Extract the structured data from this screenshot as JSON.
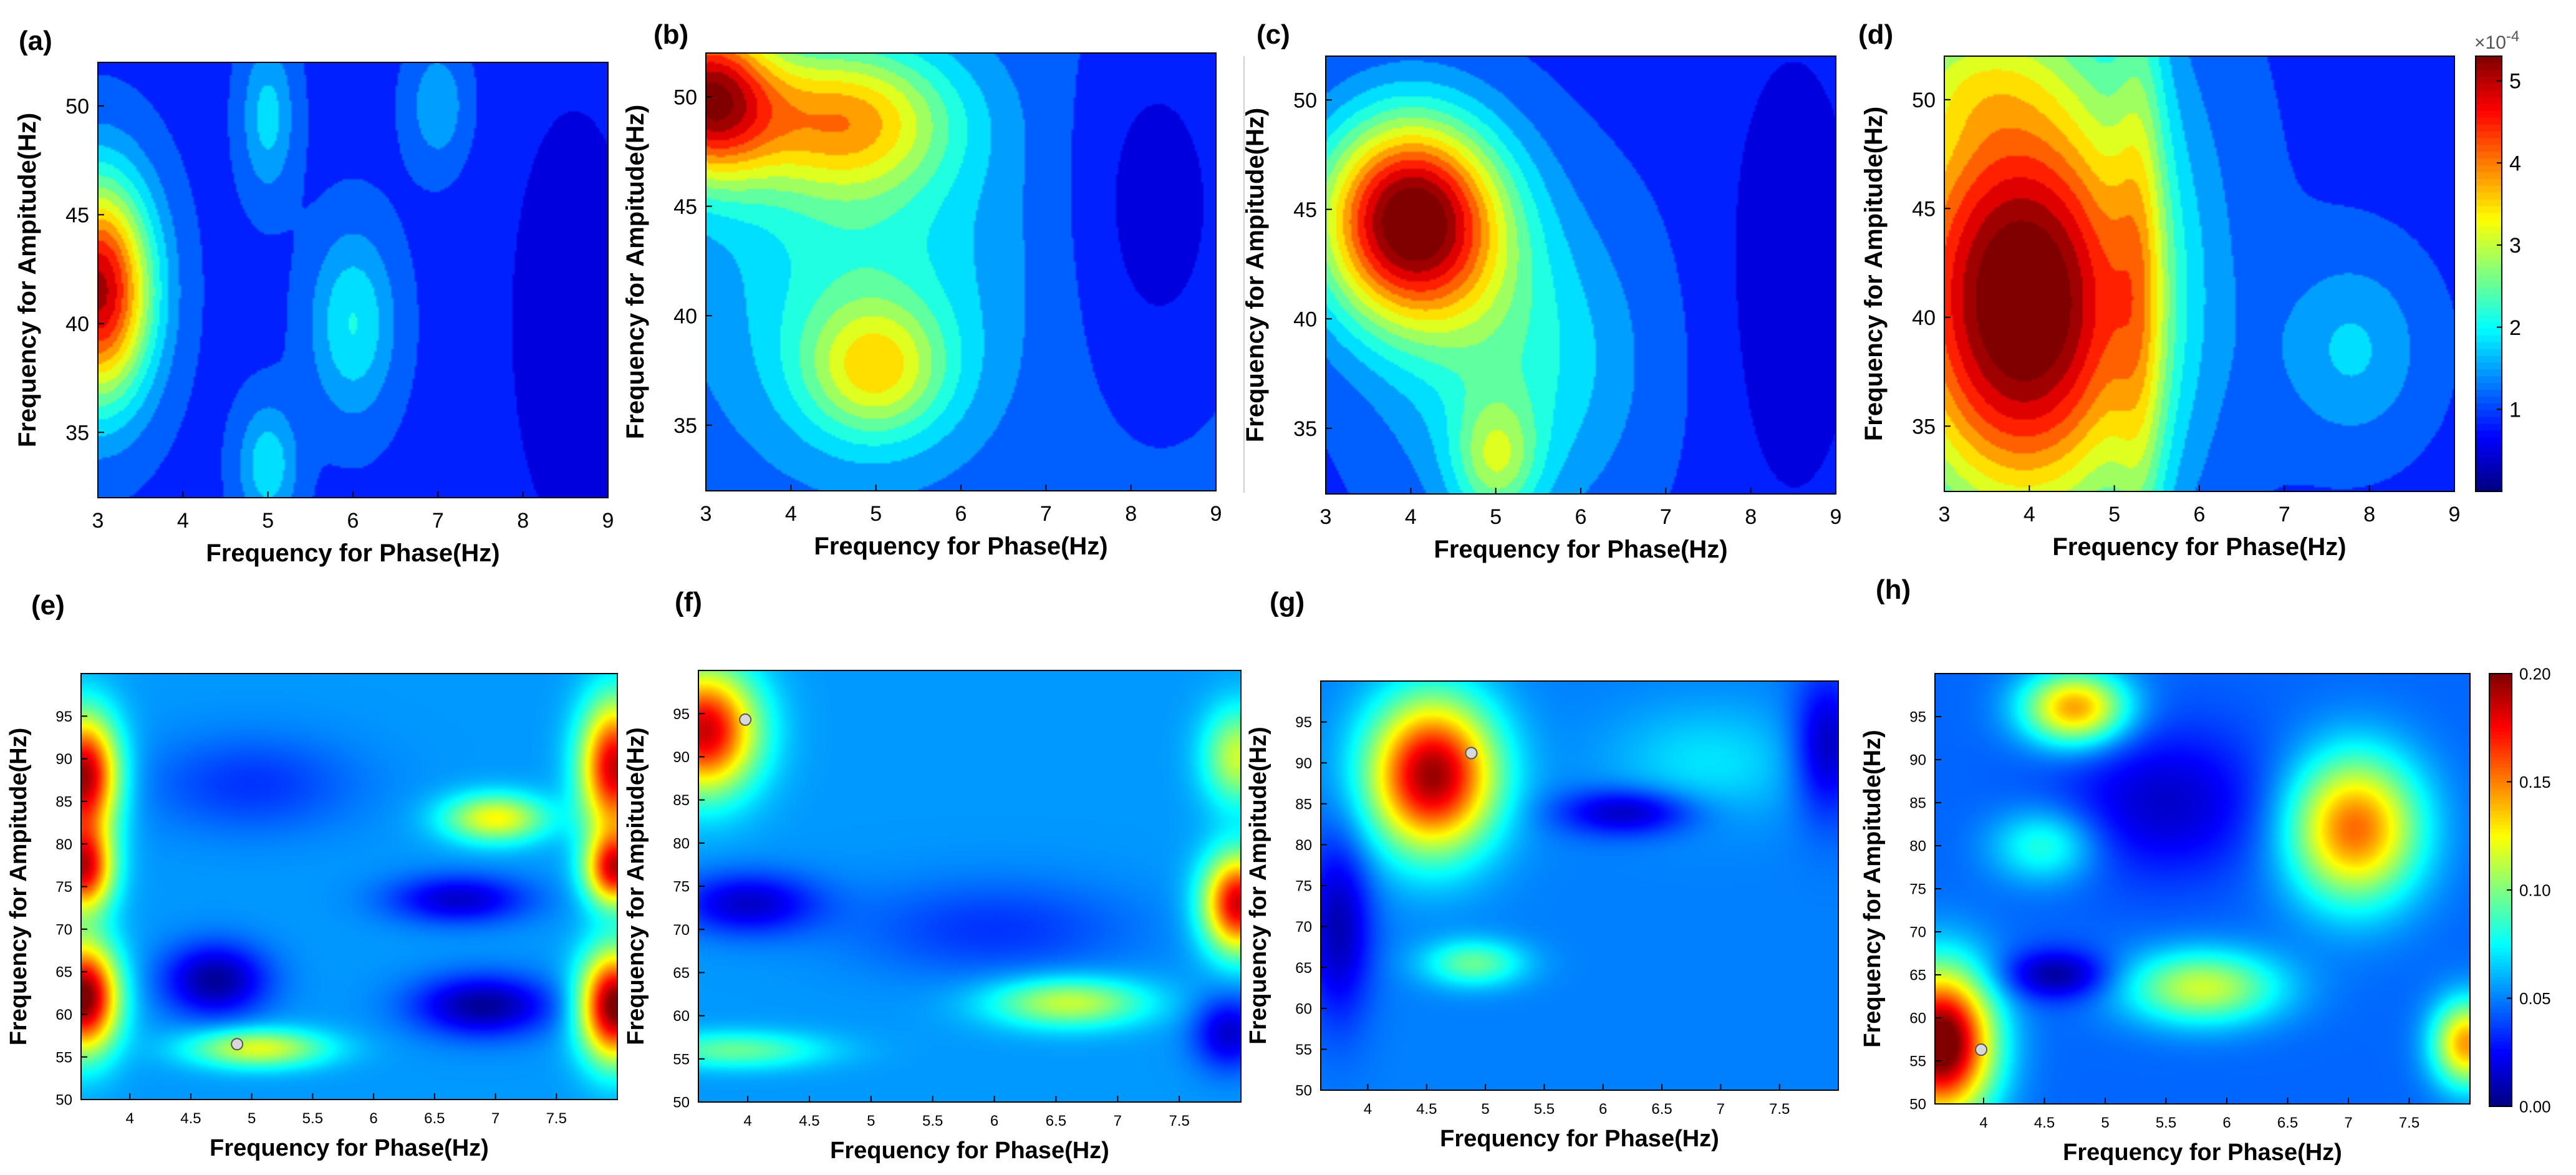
{
  "figure": {
    "panels_top_xlabel": "Frequency for Phase(Hz)",
    "panels_top_ylabel": "Frequency for Ampitude(Hz)"
  },
  "chart_data": [
    {
      "id": "a",
      "label": "(a)",
      "type": "heatmap",
      "xlabel": "Frequency for Phase(Hz)",
      "ylabel": "Frequency for Ampitude(Hz)",
      "xlim": [
        3,
        9
      ],
      "ylim": [
        32,
        52
      ],
      "xticks": [
        3,
        4,
        5,
        6,
        7,
        8,
        9
      ],
      "yticks": [
        35,
        40,
        45,
        50
      ],
      "xtick_labels": [
        "3",
        "4",
        "5",
        "6",
        "7",
        "8",
        "9"
      ],
      "ytick_labels": [
        "35",
        "40",
        "45",
        "50"
      ],
      "clim": [
        0,
        5.3
      ],
      "background": 0.9,
      "blobs": [
        {
          "x": 3.0,
          "y": 41.5,
          "sx": 0.45,
          "sy": 3.6,
          "v": 4.2
        },
        {
          "x": 6.0,
          "y": 40.0,
          "sx": 0.35,
          "sy": 3.0,
          "v": 1.1
        },
        {
          "x": 5.0,
          "y": 49.5,
          "sx": 0.22,
          "sy": 2.5,
          "v": 0.9
        },
        {
          "x": 5.0,
          "y": 33.5,
          "sx": 0.25,
          "sy": 2.0,
          "v": 1.0
        },
        {
          "x": 7.0,
          "y": 50.0,
          "sx": 0.25,
          "sy": 2.0,
          "v": 0.7
        },
        {
          "x": 8.6,
          "y": 40.0,
          "sx": 0.6,
          "sy": 8.0,
          "v": -0.5
        }
      ]
    },
    {
      "id": "b",
      "label": "(b)",
      "type": "heatmap",
      "xlabel": "Frequency for Phase(Hz)",
      "ylabel": "Frequency for Ampitude(Hz)",
      "xlim": [
        3,
        9
      ],
      "ylim": [
        32,
        52
      ],
      "xticks": [
        3,
        4,
        5,
        6,
        7,
        8,
        9
      ],
      "yticks": [
        35,
        40,
        45,
        50
      ],
      "xtick_labels": [
        "3",
        "4",
        "5",
        "6",
        "7",
        "8",
        "9"
      ],
      "ytick_labels": [
        "35",
        "40",
        "45",
        "50"
      ],
      "clim": [
        0,
        5.3
      ],
      "background": 1.1,
      "blobs": [
        {
          "x": 3.0,
          "y": 50.0,
          "sx": 0.55,
          "sy": 2.6,
          "v": 3.8
        },
        {
          "x": 4.6,
          "y": 49.0,
          "sx": 0.9,
          "sy": 2.4,
          "v": 2.4
        },
        {
          "x": 5.0,
          "y": 37.5,
          "sx": 0.6,
          "sy": 2.2,
          "v": 1.8
        },
        {
          "x": 4.8,
          "y": 42.0,
          "sx": 1.2,
          "sy": 5.5,
          "v": 1.0
        },
        {
          "x": 8.3,
          "y": 45.0,
          "sx": 0.7,
          "sy": 6.0,
          "v": -0.6
        }
      ]
    },
    {
      "id": "c",
      "label": "(c)",
      "type": "heatmap",
      "xlabel": "Frequency for Phase(Hz)",
      "ylabel": "Frequency for Ampitude(Hz)",
      "xlim": [
        3,
        9
      ],
      "ylim": [
        32,
        52
      ],
      "xticks": [
        3,
        4,
        5,
        6,
        7,
        8,
        9
      ],
      "yticks": [
        35,
        40,
        45,
        50
      ],
      "xtick_labels": [
        "3",
        "4",
        "5",
        "6",
        "7",
        "8",
        "9"
      ],
      "ytick_labels": [
        "35",
        "40",
        "45",
        "50"
      ],
      "clim": [
        0,
        5.3
      ],
      "background": 0.9,
      "blobs": [
        {
          "x": 4.0,
          "y": 44.5,
          "sx": 0.75,
          "sy": 3.3,
          "v": 4.7
        },
        {
          "x": 5.2,
          "y": 38.0,
          "sx": 1.0,
          "sy": 5.0,
          "v": 1.2
        },
        {
          "x": 5.0,
          "y": 33.5,
          "sx": 0.35,
          "sy": 2.0,
          "v": 1.4
        },
        {
          "x": 8.5,
          "y": 42.0,
          "sx": 0.6,
          "sy": 8.0,
          "v": -0.5
        }
      ]
    },
    {
      "id": "d",
      "label": "(d)",
      "type": "heatmap",
      "xlabel": "Frequency for Phase(Hz)",
      "ylabel": "Frequency for Ampitude(Hz)",
      "xlim": [
        3,
        9
      ],
      "ylim": [
        32,
        52
      ],
      "xticks": [
        3,
        4,
        5,
        6,
        7,
        8,
        9
      ],
      "yticks": [
        35,
        40,
        45,
        50
      ],
      "xtick_labels": [
        "3",
        "4",
        "5",
        "6",
        "7",
        "8",
        "9"
      ],
      "ytick_labels": [
        "35",
        "40",
        "45",
        "50"
      ],
      "clim": [
        0,
        5.3
      ],
      "background": 0.9,
      "blobs": [
        {
          "x": 4.0,
          "y": 40.0,
          "sx": 1.0,
          "sy": 6.5,
          "v": 3.6
        },
        {
          "x": 3.6,
          "y": 44.0,
          "sx": 1.4,
          "sy": 9.0,
          "v": 1.6
        },
        {
          "x": 3.3,
          "y": 51.0,
          "sx": 0.8,
          "sy": 2.0,
          "v": 0.6
        },
        {
          "x": 5.3,
          "y": 42.0,
          "sx": 0.22,
          "sy": 12.0,
          "v": 1.0
        },
        {
          "x": 7.8,
          "y": 38.5,
          "sx": 0.6,
          "sy": 3.0,
          "v": 0.8
        }
      ],
      "colorbar": {
        "ticks": [
          1,
          2,
          3,
          4,
          5
        ],
        "tick_labels": [
          "1",
          "2",
          "3",
          "4",
          "5"
        ],
        "exponent_label": "×10",
        "exponent": "-4"
      }
    },
    {
      "id": "e",
      "label": "(e)",
      "type": "heatmap",
      "xlabel": "Frequency for Phase(Hz)",
      "ylabel": "Frequency for Ampitude(Hz)",
      "xlim": [
        3.6,
        8.0
      ],
      "ylim": [
        50,
        100
      ],
      "xticks": [
        4,
        4.5,
        5,
        5.5,
        6,
        6.5,
        7,
        7.5
      ],
      "yticks": [
        50,
        55,
        60,
        65,
        70,
        75,
        80,
        85,
        90,
        95
      ],
      "xtick_labels": [
        "4",
        "4.5",
        "5",
        "5.5",
        "6",
        "6.5",
        "7",
        "7.5"
      ],
      "ytick_labels": [
        "50",
        "55",
        "60",
        "65",
        "70",
        "75",
        "80",
        "85",
        "90",
        "95"
      ],
      "clim": [
        0,
        0.2
      ],
      "background": 0.055,
      "blobs": [
        {
          "x": 3.62,
          "y": 88.0,
          "sx": 0.2,
          "sy": 5.0,
          "v": 0.14
        },
        {
          "x": 3.62,
          "y": 77.0,
          "sx": 0.17,
          "sy": 3.5,
          "v": 0.12
        },
        {
          "x": 3.62,
          "y": 62.0,
          "sx": 0.2,
          "sy": 4.5,
          "v": 0.15
        },
        {
          "x": 7.98,
          "y": 89.0,
          "sx": 0.2,
          "sy": 5.5,
          "v": 0.13
        },
        {
          "x": 7.98,
          "y": 77.0,
          "sx": 0.17,
          "sy": 3.0,
          "v": 0.12
        },
        {
          "x": 7.98,
          "y": 61.0,
          "sx": 0.2,
          "sy": 4.5,
          "v": 0.15
        },
        {
          "x": 5.05,
          "y": 56.0,
          "sx": 0.4,
          "sy": 1.6,
          "v": 0.065
        },
        {
          "x": 7.0,
          "y": 83.0,
          "sx": 0.3,
          "sy": 2.0,
          "v": 0.07
        },
        {
          "x": 4.7,
          "y": 64.0,
          "sx": 0.3,
          "sy": 3.0,
          "v": -0.05
        },
        {
          "x": 6.9,
          "y": 61.0,
          "sx": 0.4,
          "sy": 2.5,
          "v": -0.05
        },
        {
          "x": 6.7,
          "y": 73.5,
          "sx": 0.4,
          "sy": 2.0,
          "v": -0.04
        },
        {
          "x": 5.0,
          "y": 87.0,
          "sx": 0.6,
          "sy": 4.0,
          "v": -0.02
        }
      ],
      "marker": {
        "x": 4.88,
        "y": 56.5
      }
    },
    {
      "id": "f",
      "label": "(f)",
      "type": "heatmap",
      "xlabel": "Frequency for Phase(Hz)",
      "ylabel": "Frequency for Ampitude(Hz)",
      "xlim": [
        3.6,
        8.0
      ],
      "ylim": [
        50,
        100
      ],
      "xticks": [
        4,
        4.5,
        5,
        5.5,
        6,
        6.5,
        7,
        7.5
      ],
      "yticks": [
        50,
        55,
        60,
        65,
        70,
        75,
        80,
        85,
        90,
        95
      ],
      "xtick_labels": [
        "4",
        "4.5",
        "5",
        "5.5",
        "6",
        "6.5",
        "7",
        "7.5"
      ],
      "ytick_labels": [
        "50",
        "55",
        "60",
        "65",
        "70",
        "75",
        "80",
        "85",
        "90",
        "95"
      ],
      "clim": [
        0,
        0.2
      ],
      "background": 0.055,
      "blobs": [
        {
          "x": 3.65,
          "y": 93.0,
          "sx": 0.3,
          "sy": 5.0,
          "v": 0.13
        },
        {
          "x": 7.98,
          "y": 73.0,
          "sx": 0.2,
          "sy": 4.0,
          "v": 0.13
        },
        {
          "x": 7.98,
          "y": 90.0,
          "sx": 0.2,
          "sy": 4.0,
          "v": 0.06
        },
        {
          "x": 6.6,
          "y": 61.5,
          "sx": 0.45,
          "sy": 2.0,
          "v": 0.06
        },
        {
          "x": 3.9,
          "y": 56.0,
          "sx": 0.5,
          "sy": 1.5,
          "v": 0.04
        },
        {
          "x": 4.0,
          "y": 73.0,
          "sx": 0.4,
          "sy": 2.5,
          "v": -0.04
        },
        {
          "x": 6.0,
          "y": 70.0,
          "sx": 0.8,
          "sy": 4.0,
          "v": -0.02
        },
        {
          "x": 7.9,
          "y": 58.0,
          "sx": 0.2,
          "sy": 3.0,
          "v": -0.04
        }
      ],
      "marker": {
        "x": 3.98,
        "y": 94.3
      }
    },
    {
      "id": "g",
      "label": "(g)",
      "type": "heatmap",
      "xlabel": "Frequency for Phase(Hz)",
      "ylabel": "Frequency for Ampitude(Hz)",
      "xlim": [
        3.6,
        8.0
      ],
      "ylim": [
        50,
        100
      ],
      "xticks": [
        4,
        4.5,
        5,
        5.5,
        6,
        6.5,
        7,
        7.5
      ],
      "yticks": [
        50,
        55,
        60,
        65,
        70,
        75,
        80,
        85,
        90,
        95
      ],
      "xtick_labels": [
        "4",
        "4.5",
        "5",
        "5.5",
        "6",
        "6.5",
        "7",
        "7.5"
      ],
      "ytick_labels": [
        "50",
        "55",
        "60",
        "65",
        "70",
        "75",
        "80",
        "85",
        "90",
        "95"
      ],
      "clim": [
        0,
        0.2
      ],
      "background": 0.05,
      "blobs": [
        {
          "x": 4.55,
          "y": 88.5,
          "sx": 0.38,
          "sy": 6.5,
          "v": 0.145
        },
        {
          "x": 4.9,
          "y": 65.5,
          "sx": 0.3,
          "sy": 2.0,
          "v": 0.045
        },
        {
          "x": 6.9,
          "y": 90.0,
          "sx": 0.6,
          "sy": 5.0,
          "v": 0.02
        },
        {
          "x": 6.2,
          "y": 84.0,
          "sx": 0.4,
          "sy": 2.0,
          "v": -0.04
        },
        {
          "x": 3.75,
          "y": 70.0,
          "sx": 0.2,
          "sy": 8.0,
          "v": -0.04
        },
        {
          "x": 7.9,
          "y": 92.0,
          "sx": 0.2,
          "sy": 6.0,
          "v": -0.04
        }
      ],
      "marker": {
        "x": 4.88,
        "y": 91.2
      }
    },
    {
      "id": "h",
      "label": "(h)",
      "type": "heatmap",
      "xlabel": "Frequency for Phase(Hz)",
      "ylabel": "Frequency for Ampitude(Hz)",
      "xlim": [
        3.6,
        8.0
      ],
      "ylim": [
        50,
        100
      ],
      "xticks": [
        4,
        4.5,
        5,
        5.5,
        6,
        6.5,
        7,
        7.5
      ],
      "yticks": [
        50,
        55,
        60,
        65,
        70,
        75,
        80,
        85,
        90,
        95
      ],
      "xtick_labels": [
        "4",
        "4.5",
        "5",
        "5.5",
        "6",
        "6.5",
        "7",
        "7.5"
      ],
      "ytick_labels": [
        "50",
        "55",
        "60",
        "65",
        "70",
        "75",
        "80",
        "85",
        "90",
        "95"
      ],
      "clim": [
        0,
        0.2
      ],
      "background": 0.045,
      "blobs": [
        {
          "x": 3.65,
          "y": 57.0,
          "sx": 0.3,
          "sy": 6.0,
          "v": 0.17
        },
        {
          "x": 7.05,
          "y": 82.0,
          "sx": 0.38,
          "sy": 6.0,
          "v": 0.11
        },
        {
          "x": 4.75,
          "y": 96.0,
          "sx": 0.3,
          "sy": 3.0,
          "v": 0.1
        },
        {
          "x": 5.8,
          "y": 63.5,
          "sx": 0.45,
          "sy": 3.0,
          "v": 0.07
        },
        {
          "x": 7.98,
          "y": 57.0,
          "sx": 0.2,
          "sy": 3.5,
          "v": 0.1
        },
        {
          "x": 4.5,
          "y": 80.0,
          "sx": 0.3,
          "sy": 3.0,
          "v": 0.04
        },
        {
          "x": 4.6,
          "y": 65.0,
          "sx": 0.3,
          "sy": 2.0,
          "v": -0.04
        },
        {
          "x": 5.5,
          "y": 85.0,
          "sx": 0.6,
          "sy": 6.0,
          "v": -0.03
        }
      ],
      "marker": {
        "x": 3.98,
        "y": 56.3
      },
      "colorbar": {
        "ticks": [
          0,
          0.05,
          0.1,
          0.15,
          0.2
        ],
        "tick_labels": [
          "0.00",
          "0.05",
          "0.10",
          "0.15",
          "0.20"
        ]
      }
    }
  ]
}
